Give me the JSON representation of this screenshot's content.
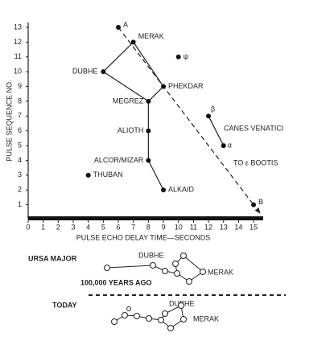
{
  "chart_data": {
    "type": "scatter",
    "xlabel": "PULSE ECHO DELAY TIME—SECONDS",
    "ylabel": "PULSE SEQUENCE NO.",
    "xlim": [
      0,
      15.8
    ],
    "ylim": [
      0,
      13.3
    ],
    "xticks": [
      0,
      1,
      2,
      3,
      4,
      5,
      6,
      7,
      8,
      9,
      10,
      11,
      12,
      13,
      14,
      15
    ],
    "yticks": [
      1,
      2,
      3,
      4,
      5,
      6,
      7,
      8,
      9,
      10,
      11,
      12,
      13
    ],
    "points": [
      {
        "label": "A",
        "x": 6,
        "y": 13
      },
      {
        "label": "MERAK",
        "x": 7,
        "y": 12
      },
      {
        "label": "DUBHE",
        "x": 5,
        "y": 10
      },
      {
        "label": "PHEKDAR",
        "x": 9,
        "y": 9
      },
      {
        "label": "MEGREZ",
        "x": 8,
        "y": 8
      },
      {
        "label": "ALIOTH",
        "x": 8,
        "y": 6
      },
      {
        "label": "ALCOR/MIZAR",
        "x": 8,
        "y": 4
      },
      {
        "label": "ALKAID",
        "x": 9,
        "y": 2
      },
      {
        "label": "THUBAN",
        "x": 4,
        "y": 3
      },
      {
        "label": "ψ",
        "x": 10,
        "y": 11
      },
      {
        "label": "β",
        "x": 12,
        "y": 7
      },
      {
        "label": "α",
        "x": 13,
        "y": 5
      },
      {
        "label": "B",
        "x": 15,
        "y": 1
      }
    ],
    "annotations": [
      "CANES VENATICI",
      "TO ε BOOTIS"
    ]
  },
  "lower_panel": {
    "title": "URSA MAJOR",
    "past_label": "100,000 YEARS AGO",
    "today_label": "TODAY",
    "past_stars": [
      "DUBHE",
      "MERAK"
    ],
    "today_stars": [
      "DUBHE",
      "MERAK"
    ]
  }
}
